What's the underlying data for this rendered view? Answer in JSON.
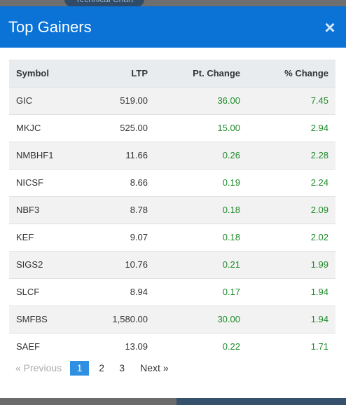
{
  "background": {
    "pill_label": "Technical Chart"
  },
  "modal": {
    "title": "Top Gainers",
    "close_label": "×"
  },
  "table": {
    "headers": {
      "symbol": "Symbol",
      "ltp": "LTP",
      "pt_change": "Pt. Change",
      "pct_change": "% Change"
    },
    "rows": [
      {
        "symbol": "GIC",
        "ltp": "519.00",
        "pt_change": "36.00",
        "pct_change": "7.45"
      },
      {
        "symbol": "MKJC",
        "ltp": "525.00",
        "pt_change": "15.00",
        "pct_change": "2.94"
      },
      {
        "symbol": "NMBHF1",
        "ltp": "11.66",
        "pt_change": "0.26",
        "pct_change": "2.28"
      },
      {
        "symbol": "NICSF",
        "ltp": "8.66",
        "pt_change": "0.19",
        "pct_change": "2.24"
      },
      {
        "symbol": "NBF3",
        "ltp": "8.78",
        "pt_change": "0.18",
        "pct_change": "2.09"
      },
      {
        "symbol": "KEF",
        "ltp": "9.07",
        "pt_change": "0.18",
        "pct_change": "2.02"
      },
      {
        "symbol": "SIGS2",
        "ltp": "10.76",
        "pt_change": "0.21",
        "pct_change": "1.99"
      },
      {
        "symbol": "SLCF",
        "ltp": "8.94",
        "pt_change": "0.17",
        "pct_change": "1.94"
      },
      {
        "symbol": "SMFBS",
        "ltp": "1,580.00",
        "pt_change": "30.00",
        "pct_change": "1.94"
      },
      {
        "symbol": "SAEF",
        "ltp": "13.09",
        "pt_change": "0.22",
        "pct_change": "1.71"
      }
    ]
  },
  "pagination": {
    "prev_label": "«  Previous",
    "pages": [
      "1",
      "2",
      "3"
    ],
    "current_page": "1",
    "next_label": "Next  »"
  },
  "colors": {
    "header_bg": "#0b72d6",
    "positive": "#1e8b2a",
    "active_page": "#2f8fe0"
  }
}
